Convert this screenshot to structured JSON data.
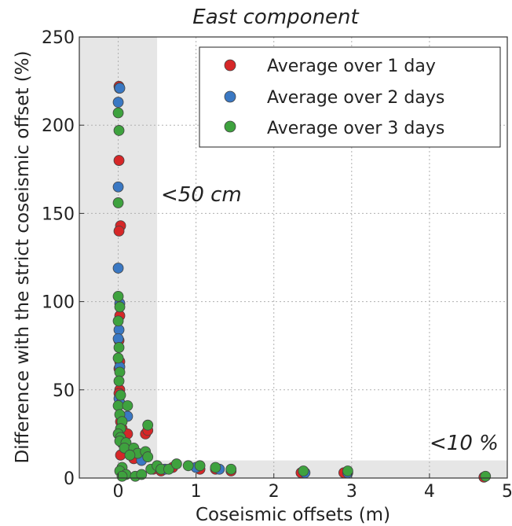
{
  "chart_data": {
    "type": "scatter",
    "title": "East component",
    "xlabel": "Coseismic offsets (m)",
    "ylabel": "Difference with the strict coseismic offset (%)",
    "xlim": [
      -0.5,
      5
    ],
    "ylim": [
      0,
      250
    ],
    "xticks": [
      "0",
      "1",
      "2",
      "3",
      "4",
      "5"
    ],
    "yticks": [
      "0",
      "50",
      "100",
      "150",
      "200",
      "250"
    ],
    "grid": true,
    "legend_position": "top-right",
    "annotations": [
      "<50 cm",
      "<10 %"
    ],
    "shaded_regions": [
      {
        "x": [
          -0.5,
          0.5
        ],
        "y": [
          0,
          250
        ]
      },
      {
        "x": [
          -0.5,
          5
        ],
        "y": [
          0,
          10
        ]
      }
    ],
    "series": [
      {
        "name": "Average over 1 day",
        "color": "#d62728",
        "points": [
          [
            0.01,
            222
          ],
          [
            0.015,
            221
          ],
          [
            0.01,
            180
          ],
          [
            0.03,
            143
          ],
          [
            0.01,
            140
          ],
          [
            0.02,
            92
          ],
          [
            0.01,
            78
          ],
          [
            0.02,
            66
          ],
          [
            0.01,
            62
          ],
          [
            0.02,
            50
          ],
          [
            0.01,
            48
          ],
          [
            0.02,
            42
          ],
          [
            0.03,
            32
          ],
          [
            0.05,
            28
          ],
          [
            0.08,
            25
          ],
          [
            0.12,
            25
          ],
          [
            0.05,
            20
          ],
          [
            0.1,
            17
          ],
          [
            0.03,
            13
          ],
          [
            0.2,
            11
          ],
          [
            0.35,
            25
          ],
          [
            0.38,
            27
          ],
          [
            0.45,
            5
          ],
          [
            0.55,
            4
          ],
          [
            0.7,
            6
          ],
          [
            1.05,
            5
          ],
          [
            1.25,
            5
          ],
          [
            1.45,
            4
          ],
          [
            2.35,
            3
          ],
          [
            2.9,
            3
          ],
          [
            4.7,
            0.5
          ]
        ]
      },
      {
        "name": "Average over 2 days",
        "color": "#3a78c3",
        "points": [
          [
            0.02,
            221
          ],
          [
            0.0,
            213
          ],
          [
            0.0,
            165
          ],
          [
            0.0,
            119
          ],
          [
            0.02,
            99
          ],
          [
            0.01,
            84
          ],
          [
            0.0,
            79
          ],
          [
            0.02,
            63
          ],
          [
            0.01,
            45
          ],
          [
            0.03,
            42
          ],
          [
            0.12,
            35
          ],
          [
            0.15,
            15
          ],
          [
            0.05,
            20
          ],
          [
            0.3,
            10
          ],
          [
            0.6,
            5
          ],
          [
            1.0,
            6
          ],
          [
            1.3,
            5
          ],
          [
            2.4,
            3
          ],
          [
            2.95,
            3
          ]
        ]
      },
      {
        "name": "Average over 3 days",
        "color": "#3ea23e",
        "points": [
          [
            0.0,
            207
          ],
          [
            0.01,
            197
          ],
          [
            0.0,
            156
          ],
          [
            0.0,
            103
          ],
          [
            0.02,
            97
          ],
          [
            0.0,
            89
          ],
          [
            0.01,
            74
          ],
          [
            0.0,
            68
          ],
          [
            0.02,
            60
          ],
          [
            0.01,
            55
          ],
          [
            0.03,
            47
          ],
          [
            0.0,
            41
          ],
          [
            0.12,
            41
          ],
          [
            0.02,
            36
          ],
          [
            0.05,
            32
          ],
          [
            0.03,
            28
          ],
          [
            0.0,
            25
          ],
          [
            0.03,
            23
          ],
          [
            0.02,
            21
          ],
          [
            0.1,
            20
          ],
          [
            0.08,
            17
          ],
          [
            0.2,
            17
          ],
          [
            0.25,
            14
          ],
          [
            0.15,
            13
          ],
          [
            0.05,
            6
          ],
          [
            0.02,
            4
          ],
          [
            0.1,
            2
          ],
          [
            0.22,
            1
          ],
          [
            0.3,
            2
          ],
          [
            0.38,
            30
          ],
          [
            0.35,
            15
          ],
          [
            0.38,
            12
          ],
          [
            0.42,
            5
          ],
          [
            0.5,
            7
          ],
          [
            0.55,
            5
          ],
          [
            0.65,
            5
          ],
          [
            0.75,
            8
          ],
          [
            0.9,
            7
          ],
          [
            1.05,
            7
          ],
          [
            1.25,
            6
          ],
          [
            1.45,
            5
          ],
          [
            2.38,
            4
          ],
          [
            2.95,
            4
          ],
          [
            4.72,
            1
          ],
          [
            0.05,
            1
          ]
        ]
      }
    ]
  }
}
